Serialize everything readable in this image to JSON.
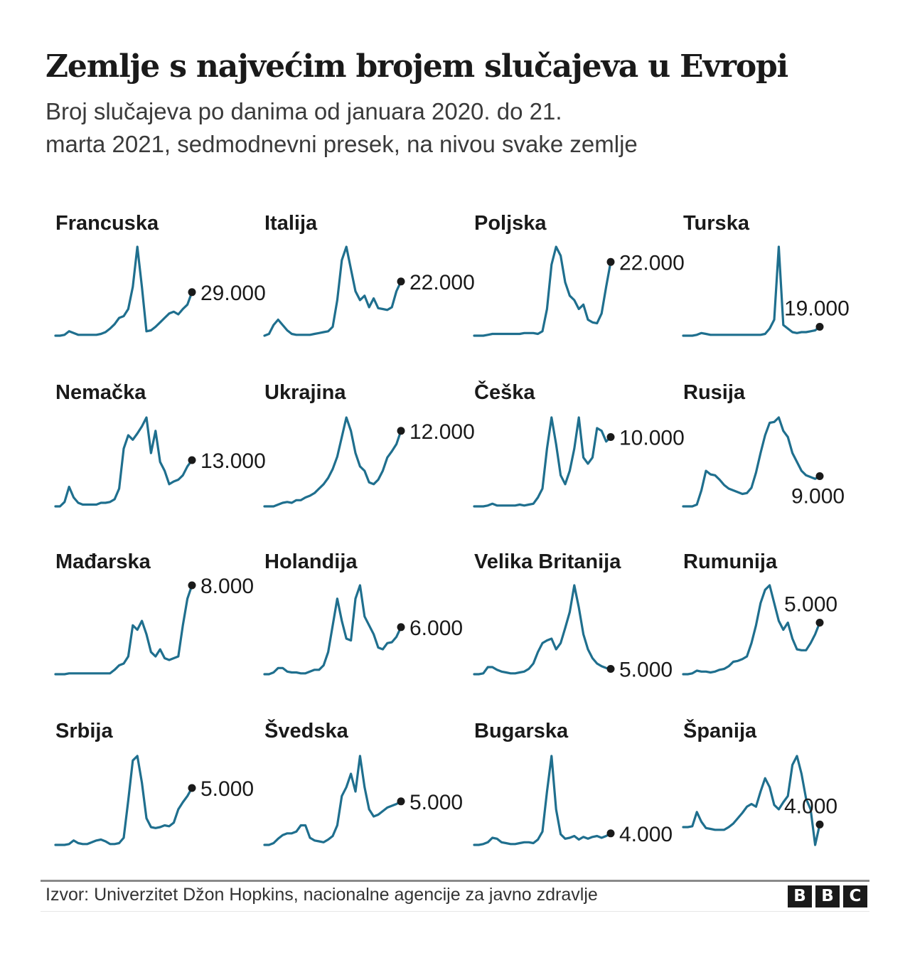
{
  "header": {
    "title": "Zemlje s najvećim brojem slučajeva u Evropi",
    "subtitle_line1": "Broj slučajeva po danima od januara 2020. do 21.",
    "subtitle_line2": "marta 2021, sedmodnevni presek, na nivou svake zemlje"
  },
  "footer": {
    "source": "Izvor: Univerzitet Džon Hopkins, nacionalne agencije za javno zdravlje",
    "logo_letters": [
      "B",
      "B",
      "C"
    ]
  },
  "colors": {
    "line": "#1f6f8e",
    "dot": "#1a1a1a",
    "text": "#1a1a1a"
  },
  "chart_data": {
    "type": "line",
    "title": "Zemlje s najvećim brojem slučajeva u Evropi",
    "subtitle": "Broj slučajeva po danima od januara 2020. do 21. marta 2021, sedmodnevni presek, na nivou svake zemlje",
    "xlabel": "",
    "ylabel": "",
    "x_range": [
      "2020-01",
      "2021-03-21"
    ],
    "y_units": "share of each country's own peak (independent y-scales)",
    "grid": false,
    "panels": [
      {
        "name": "Francuska",
        "end_label": "29.000",
        "label_pos": "right",
        "values": [
          0,
          0,
          0.01,
          0.05,
          0.03,
          0.01,
          0.01,
          0.01,
          0.01,
          0.01,
          0.02,
          0.04,
          0.08,
          0.13,
          0.2,
          0.22,
          0.3,
          0.55,
          1.0,
          0.55,
          0.05,
          0.06,
          0.1,
          0.15,
          0.2,
          0.25,
          0.27,
          0.24,
          0.3,
          0.35,
          0.49
        ]
      },
      {
        "name": "Italija",
        "end_label": "22.000",
        "label_pos": "right",
        "values": [
          0,
          0.02,
          0.12,
          0.18,
          0.12,
          0.06,
          0.02,
          0.01,
          0.01,
          0.01,
          0.01,
          0.02,
          0.03,
          0.04,
          0.05,
          0.1,
          0.4,
          0.85,
          1.0,
          0.75,
          0.5,
          0.4,
          0.45,
          0.32,
          0.42,
          0.31,
          0.3,
          0.29,
          0.32,
          0.5,
          0.61
        ]
      },
      {
        "name": "Poljska",
        "end_label": "22.000",
        "label_pos": "right",
        "values": [
          0,
          0,
          0,
          0.01,
          0.02,
          0.02,
          0.02,
          0.02,
          0.02,
          0.02,
          0.02,
          0.03,
          0.03,
          0.03,
          0.02,
          0.05,
          0.3,
          0.8,
          1.0,
          0.9,
          0.6,
          0.45,
          0.4,
          0.3,
          0.35,
          0.18,
          0.15,
          0.14,
          0.25,
          0.55,
          0.83
        ]
      },
      {
        "name": "Turska",
        "end_label": "19.000",
        "label_pos": "top",
        "values": [
          0,
          0,
          0,
          0.01,
          0.03,
          0.02,
          0.01,
          0.01,
          0.01,
          0.01,
          0.01,
          0.01,
          0.01,
          0.01,
          0.01,
          0.01,
          0.01,
          0.01,
          0.02,
          0.08,
          0.18,
          1.0,
          0.12,
          0.08,
          0.04,
          0.03,
          0.04,
          0.04,
          0.05,
          0.06,
          0.1
        ]
      },
      {
        "name": "Nemačka",
        "end_label": "13.000",
        "label_pos": "right",
        "values": [
          0,
          0,
          0.05,
          0.22,
          0.1,
          0.04,
          0.02,
          0.02,
          0.02,
          0.02,
          0.04,
          0.04,
          0.05,
          0.08,
          0.2,
          0.65,
          0.8,
          0.75,
          0.82,
          0.9,
          1.0,
          0.6,
          0.85,
          0.5,
          0.4,
          0.25,
          0.28,
          0.3,
          0.35,
          0.45,
          0.52
        ]
      },
      {
        "name": "Ukrajina",
        "end_label": "12.000",
        "label_pos": "right",
        "values": [
          0,
          0,
          0,
          0.02,
          0.04,
          0.05,
          0.04,
          0.07,
          0.07,
          0.1,
          0.12,
          0.15,
          0.2,
          0.25,
          0.32,
          0.42,
          0.56,
          0.78,
          1.0,
          0.85,
          0.6,
          0.45,
          0.4,
          0.27,
          0.25,
          0.3,
          0.4,
          0.55,
          0.62,
          0.7,
          0.85
        ]
      },
      {
        "name": "Češka",
        "end_label": "10.000",
        "label_pos": "right",
        "values": [
          0,
          0,
          0,
          0.01,
          0.03,
          0.01,
          0.01,
          0.01,
          0.01,
          0.01,
          0.02,
          0.01,
          0.02,
          0.03,
          0.1,
          0.2,
          0.65,
          1.0,
          0.7,
          0.35,
          0.25,
          0.4,
          0.65,
          1.0,
          0.55,
          0.48,
          0.55,
          0.88,
          0.85,
          0.73,
          0.78
        ]
      },
      {
        "name": "Rusija",
        "end_label": "9.000",
        "label_pos": "below",
        "values": [
          0,
          0,
          0,
          0.02,
          0.18,
          0.4,
          0.36,
          0.35,
          0.3,
          0.24,
          0.2,
          0.18,
          0.16,
          0.14,
          0.15,
          0.21,
          0.38,
          0.6,
          0.8,
          0.94,
          0.95,
          1.0,
          0.85,
          0.78,
          0.6,
          0.5,
          0.4,
          0.35,
          0.33,
          0.31,
          0.34
        ]
      },
      {
        "name": "Mađarska",
        "end_label": "8.000",
        "label_pos": "right",
        "values": [
          0,
          0,
          0,
          0.01,
          0.01,
          0.01,
          0.01,
          0.01,
          0.01,
          0.01,
          0.01,
          0.01,
          0.01,
          0.05,
          0.1,
          0.12,
          0.2,
          0.55,
          0.5,
          0.6,
          0.45,
          0.25,
          0.2,
          0.28,
          0.18,
          0.16,
          0.18,
          0.2,
          0.55,
          0.85,
          1.0
        ]
      },
      {
        "name": "Holandija",
        "end_label": "6.000",
        "label_pos": "right",
        "values": [
          0,
          0,
          0.02,
          0.07,
          0.07,
          0.03,
          0.02,
          0.02,
          0.01,
          0.01,
          0.03,
          0.05,
          0.05,
          0.1,
          0.25,
          0.55,
          0.85,
          0.6,
          0.4,
          0.38,
          0.85,
          1.0,
          0.65,
          0.55,
          0.45,
          0.3,
          0.28,
          0.35,
          0.36,
          0.42,
          0.53
        ]
      },
      {
        "name": "Velika Britanija",
        "end_label": "5.000",
        "label_pos": "right",
        "values": [
          0,
          0,
          0.01,
          0.08,
          0.08,
          0.05,
          0.03,
          0.02,
          0.01,
          0.01,
          0.02,
          0.03,
          0.06,
          0.12,
          0.25,
          0.35,
          0.38,
          0.4,
          0.28,
          0.35,
          0.52,
          0.7,
          1.0,
          0.75,
          0.45,
          0.28,
          0.18,
          0.12,
          0.09,
          0.07,
          0.06
        ]
      },
      {
        "name": "Rumunija",
        "end_label": "5.000",
        "label_pos": "top",
        "values": [
          0,
          0,
          0.01,
          0.04,
          0.03,
          0.03,
          0.02,
          0.03,
          0.05,
          0.06,
          0.09,
          0.14,
          0.15,
          0.17,
          0.2,
          0.35,
          0.55,
          0.8,
          0.95,
          1.0,
          0.8,
          0.6,
          0.5,
          0.58,
          0.4,
          0.28,
          0.27,
          0.27,
          0.35,
          0.45,
          0.58
        ]
      },
      {
        "name": "Srbija",
        "end_label": "5.000",
        "label_pos": "right",
        "values": [
          0,
          0,
          0,
          0.01,
          0.05,
          0.02,
          0.01,
          0.01,
          0.03,
          0.05,
          0.06,
          0.04,
          0.01,
          0.01,
          0.02,
          0.08,
          0.5,
          0.95,
          1.0,
          0.7,
          0.3,
          0.2,
          0.19,
          0.2,
          0.22,
          0.21,
          0.25,
          0.4,
          0.48,
          0.55,
          0.64
        ]
      },
      {
        "name": "Švedska",
        "end_label": "5.000",
        "label_pos": "right",
        "values": [
          0,
          0,
          0.02,
          0.07,
          0.11,
          0.13,
          0.13,
          0.15,
          0.22,
          0.22,
          0.08,
          0.05,
          0.04,
          0.03,
          0.06,
          0.1,
          0.22,
          0.55,
          0.65,
          0.8,
          0.6,
          1.0,
          0.65,
          0.4,
          0.32,
          0.34,
          0.38,
          0.42,
          0.44,
          0.46,
          0.49
        ]
      },
      {
        "name": "Bugarska",
        "end_label": "4.000",
        "label_pos": "right",
        "values": [
          0,
          0,
          0.01,
          0.03,
          0.08,
          0.07,
          0.03,
          0.02,
          0.01,
          0.01,
          0.02,
          0.03,
          0.03,
          0.02,
          0.06,
          0.15,
          0.6,
          1.0,
          0.4,
          0.12,
          0.07,
          0.08,
          0.1,
          0.06,
          0.09,
          0.07,
          0.09,
          0.1,
          0.08,
          0.1,
          0.13
        ]
      },
      {
        "name": "Španija",
        "end_label": "4.000",
        "label_pos": "top",
        "values": [
          0.2,
          0.2,
          0.21,
          0.37,
          0.26,
          0.19,
          0.18,
          0.17,
          0.17,
          0.17,
          0.2,
          0.24,
          0.3,
          0.36,
          0.43,
          0.46,
          0.43,
          0.6,
          0.75,
          0.65,
          0.45,
          0.4,
          0.48,
          0.55,
          0.9,
          1.0,
          0.8,
          0.52,
          0.4,
          0.0,
          0.23
        ]
      }
    ]
  }
}
